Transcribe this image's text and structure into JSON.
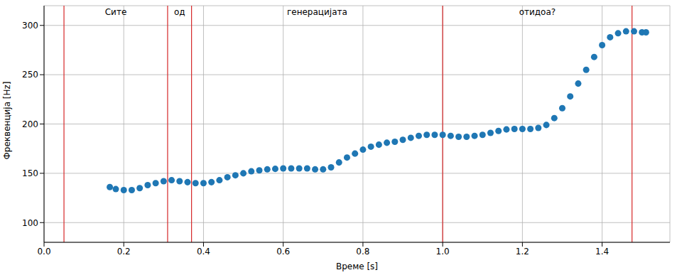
{
  "chart_data": {
    "type": "scatter",
    "x_label": "Време [s]",
    "y_label": "Фреквенција [Hz]",
    "x": [
      0.165,
      0.18,
      0.2,
      0.22,
      0.24,
      0.26,
      0.28,
      0.3,
      0.32,
      0.34,
      0.36,
      0.38,
      0.4,
      0.42,
      0.44,
      0.46,
      0.48,
      0.5,
      0.52,
      0.54,
      0.56,
      0.58,
      0.6,
      0.62,
      0.64,
      0.66,
      0.68,
      0.7,
      0.72,
      0.74,
      0.76,
      0.78,
      0.8,
      0.82,
      0.84,
      0.86,
      0.88,
      0.9,
      0.92,
      0.94,
      0.96,
      0.98,
      1.0,
      1.02,
      1.04,
      1.06,
      1.08,
      1.1,
      1.12,
      1.14,
      1.16,
      1.18,
      1.2,
      1.22,
      1.24,
      1.26,
      1.28,
      1.3,
      1.32,
      1.34,
      1.36,
      1.38,
      1.4,
      1.42,
      1.44,
      1.46,
      1.48,
      1.5,
      1.51
    ],
    "values": [
      136,
      134,
      133,
      133,
      135,
      138,
      140,
      142,
      143,
      142,
      141,
      140,
      140,
      141,
      143,
      146,
      148,
      150,
      152,
      153,
      154,
      154.5,
      155,
      155,
      155,
      155,
      154,
      154,
      156,
      161,
      166,
      170,
      174,
      177,
      179,
      181,
      182,
      184,
      186,
      188,
      189,
      189,
      189,
      188,
      187,
      187,
      188,
      189,
      191,
      193,
      194.5,
      195,
      195,
      195,
      196,
      199,
      206,
      216,
      228,
      241,
      255,
      268,
      280,
      288,
      292,
      294,
      294,
      293,
      293
    ],
    "color": "#1f77b4",
    "marker": "circle",
    "segments": [
      {
        "label": "Сите",
        "start": 0.05,
        "end": 0.31
      },
      {
        "label": "од",
        "start": 0.31,
        "end": 0.37
      },
      {
        "label": "генерацијата",
        "start": 0.37,
        "end": 1.0
      },
      {
        "label": "отидоа?",
        "start": 1.0,
        "end": 1.475
      }
    ],
    "segment_color": "#d62728",
    "xlim": [
      0,
      1.57
    ],
    "ylim": [
      80,
      320
    ],
    "xticks": [
      {
        "value": 0,
        "label": "0.0"
      },
      0.2,
      0.4,
      0.6,
      0.8,
      {
        "value": 1,
        "label": "1.0"
      },
      1.2,
      1.4
    ],
    "yticks": [
      100,
      150,
      200,
      250,
      300
    ],
    "grid": true
  }
}
